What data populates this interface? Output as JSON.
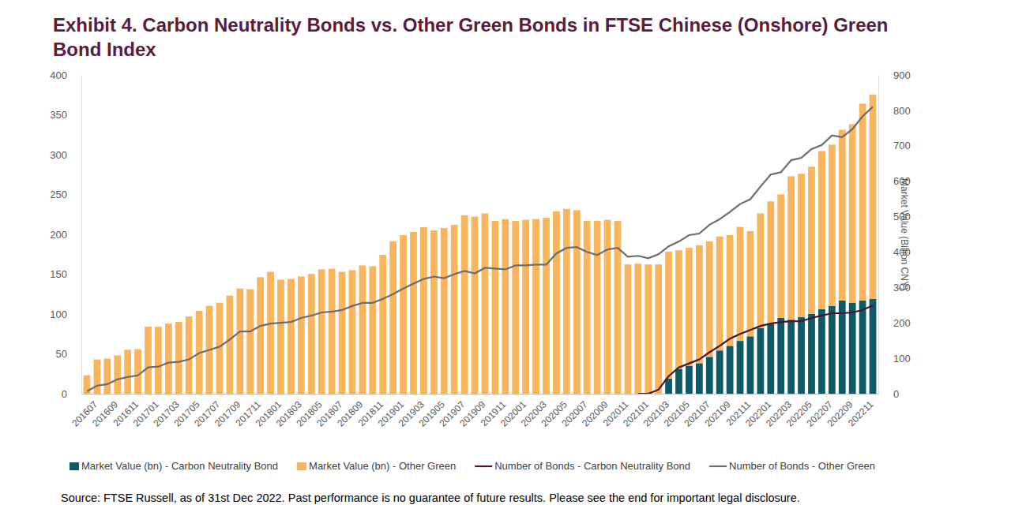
{
  "chart_data": {
    "type": "bar",
    "title": "Exhibit 4. Carbon Neutrality Bonds vs. Other Green Bonds in FTSE Chinese (Onshore) Green Bond Index",
    "y2_label": "Market Value (Billion CNY)",
    "source": "Source: FTSE Russell, as of 31st Dec 2022. Past performance is no guarantee of future results. Please see the end for important legal disclosure.",
    "stacked": true,
    "legend": "bottom",
    "grid": false,
    "categories": [
      "201607",
      null,
      "201609",
      null,
      "201611",
      null,
      "201701",
      null,
      "201703",
      null,
      "201705",
      null,
      "201707",
      null,
      "201709",
      null,
      "201711",
      null,
      "201801",
      null,
      "201803",
      null,
      "201805",
      null,
      "201807",
      null,
      "201809",
      null,
      "201811",
      null,
      "201901",
      null,
      "201903",
      null,
      "201905",
      null,
      "201907",
      null,
      "201909",
      null,
      "201911",
      null,
      "202001",
      null,
      "202003",
      null,
      "202005",
      null,
      "202007",
      null,
      "202009",
      null,
      "202011",
      null,
      "202101",
      null,
      "202103",
      null,
      "202105",
      null,
      "202107",
      null,
      "202109",
      null,
      "202111",
      null,
      "202201",
      null,
      "202203",
      null,
      "202205",
      null,
      "202207",
      null,
      "202209",
      null,
      "202211",
      null
    ],
    "ylim": [
      0,
      400
    ],
    "yticks": [
      0,
      50,
      100,
      150,
      200,
      250,
      300,
      350,
      400
    ],
    "y2lim": [
      0,
      900
    ],
    "y2ticks": [
      0,
      100,
      200,
      300,
      400,
      500,
      600,
      700,
      800,
      900
    ],
    "series": [
      {
        "name": "Market Value (bn) - Carbon Neutrality Bond",
        "type": "bar",
        "axis": "y2",
        "color": "#0e5a66",
        "values": [
          null,
          null,
          null,
          null,
          null,
          null,
          null,
          null,
          null,
          null,
          null,
          null,
          null,
          null,
          null,
          null,
          null,
          null,
          null,
          null,
          null,
          null,
          null,
          null,
          null,
          null,
          null,
          null,
          null,
          null,
          null,
          null,
          null,
          null,
          null,
          null,
          null,
          null,
          null,
          null,
          null,
          null,
          null,
          null,
          null,
          null,
          null,
          null,
          null,
          null,
          null,
          null,
          null,
          null,
          null,
          null,
          null,
          43,
          70,
          79,
          86,
          104,
          122,
          135,
          149,
          162,
          185,
          196,
          214,
          209,
          216,
          225,
          239,
          248,
          263,
          257,
          263,
          268
        ]
      },
      {
        "name": "Market Value (bn) - Other Green",
        "type": "bar",
        "axis": "y2",
        "color": "#f7b55e",
        "values": [
          52,
          97,
          99,
          108,
          124,
          126,
          189,
          189,
          198,
          203,
          218,
          234,
          248,
          257,
          277,
          297,
          295,
          329,
          344,
          322,
          324,
          331,
          338,
          351,
          353,
          344,
          349,
          362,
          360,
          392,
          430,
          448,
          457,
          470,
          461,
          468,
          477,
          504,
          500,
          509,
          488,
          493,
          488,
          491,
          493,
          497,
          515,
          522,
          518,
          488,
          488,
          491,
          488,
          365,
          367,
          365,
          365,
          358,
          335,
          333,
          333,
          326,
          322,
          313,
          322,
          297,
          324,
          347,
          349,
          405,
          405,
          416,
          446,
          455,
          482,
          504,
          556,
          576
        ]
      },
      {
        "name": "Number of Bonds - Carbon Neutrality Bond",
        "type": "line",
        "color": "#4a1429",
        "values": [
          null,
          null,
          null,
          null,
          null,
          null,
          null,
          null,
          null,
          null,
          null,
          null,
          null,
          null,
          null,
          null,
          null,
          null,
          null,
          null,
          null,
          null,
          null,
          null,
          null,
          null,
          null,
          null,
          null,
          null,
          null,
          null,
          null,
          null,
          null,
          null,
          null,
          null,
          null,
          null,
          null,
          null,
          null,
          null,
          null,
          null,
          null,
          null,
          null,
          null,
          null,
          null,
          null,
          null,
          0,
          0,
          5,
          22,
          33,
          38,
          43,
          52,
          60,
          69,
          75,
          80,
          85,
          88,
          90,
          91,
          91,
          95,
          98,
          101,
          101,
          102,
          105,
          111
        ]
      },
      {
        "name": "Number of Bonds - Other Green",
        "type": "line",
        "color": "#6d6d6d",
        "values": [
          3,
          10,
          12,
          18,
          21,
          23,
          33,
          34,
          39,
          40,
          43,
          51,
          55,
          59,
          68,
          78,
          78,
          85,
          88,
          89,
          90,
          95,
          98,
          102,
          103,
          105,
          110,
          114,
          114,
          119,
          125,
          132,
          138,
          144,
          147,
          145,
          150,
          154,
          151,
          158,
          157,
          156,
          161,
          161,
          162,
          162,
          176,
          183,
          184,
          178,
          174,
          181,
          183,
          172,
          173,
          170,
          175,
          185,
          191,
          199,
          201,
          212,
          219,
          228,
          238,
          244,
          260,
          275,
          278,
          293,
          296,
          307,
          312,
          324,
          322,
          332,
          348,
          360
        ]
      }
    ]
  }
}
